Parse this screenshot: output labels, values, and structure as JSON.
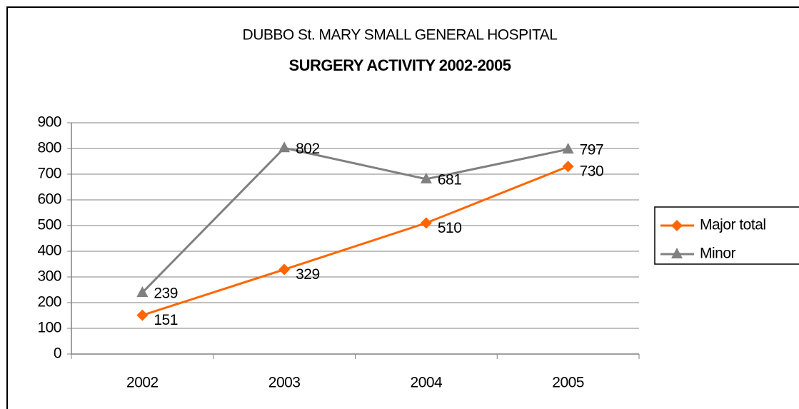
{
  "chart_data": {
    "type": "line",
    "title": "DUBBO St. MARY SMALL GENERAL HOSPITAL",
    "subtitle": "SURGERY ACTIVITY 2002-2005",
    "categories": [
      "2002",
      "2003",
      "2004",
      "2005"
    ],
    "series": [
      {
        "name": "Major total",
        "color": "#ff6600",
        "marker": "diamond",
        "values": [
          151,
          329,
          510,
          730
        ]
      },
      {
        "name": "Minor",
        "color": "#808080",
        "marker": "triangle",
        "values": [
          239,
          802,
          681,
          797
        ]
      }
    ],
    "ylim": [
      0,
      900
    ],
    "yticks": [
      0,
      100,
      200,
      300,
      400,
      500,
      600,
      700,
      800,
      900
    ],
    "grid": true,
    "legend": "right"
  }
}
